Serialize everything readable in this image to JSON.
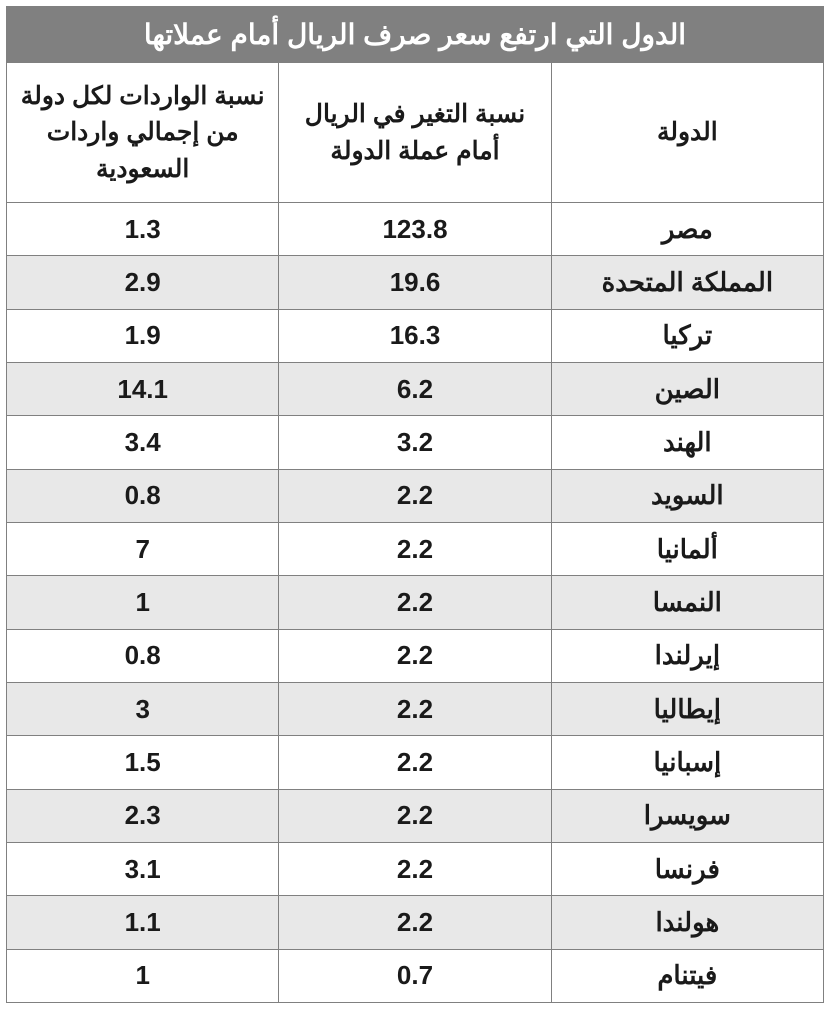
{
  "table": {
    "type": "table",
    "title": "الدول التي ارتفع  سعر صرف الريال أمام عملاتها",
    "title_bg_color": "#808080",
    "title_text_color": "#ffffff",
    "title_fontsize": 28,
    "border_color": "#808080",
    "row_even_bg": "#ffffff",
    "row_odd_bg": "#e8e8e8",
    "text_color": "#1a1a1a",
    "header_fontsize": 25,
    "data_fontsize": 26,
    "columns": [
      {
        "key": "country",
        "label": "الدولة",
        "width_pct": 33.3
      },
      {
        "key": "change_pct",
        "label": "نسبة التغير في الريال أمام عملة الدولة",
        "width_pct": 33.3
      },
      {
        "key": "import_share_pct",
        "label": "نسبة الواردات لكل دولة من إجمالي واردات السعودية",
        "width_pct": 33.3
      }
    ],
    "rows": [
      {
        "country": "مصر",
        "change_pct": "123.8",
        "import_share_pct": "1.3"
      },
      {
        "country": "المملكة المتحدة",
        "change_pct": "19.6",
        "import_share_pct": "2.9"
      },
      {
        "country": "تركيا",
        "change_pct": "16.3",
        "import_share_pct": "1.9"
      },
      {
        "country": "الصين",
        "change_pct": "6.2",
        "import_share_pct": "14.1"
      },
      {
        "country": "الهند",
        "change_pct": "3.2",
        "import_share_pct": "3.4"
      },
      {
        "country": "السويد",
        "change_pct": "2.2",
        "import_share_pct": "0.8"
      },
      {
        "country": "ألمانيا",
        "change_pct": "2.2",
        "import_share_pct": "7"
      },
      {
        "country": "النمسا",
        "change_pct": "2.2",
        "import_share_pct": "1"
      },
      {
        "country": "إيرلندا",
        "change_pct": "2.2",
        "import_share_pct": "0.8"
      },
      {
        "country": "إيطاليا",
        "change_pct": "2.2",
        "import_share_pct": "3"
      },
      {
        "country": "إسبانيا",
        "change_pct": "2.2",
        "import_share_pct": "1.5"
      },
      {
        "country": "سويسرا",
        "change_pct": "2.2",
        "import_share_pct": "2.3"
      },
      {
        "country": "فرنسا",
        "change_pct": "2.2",
        "import_share_pct": "3.1"
      },
      {
        "country": "هولندا",
        "change_pct": "2.2",
        "import_share_pct": "1.1"
      },
      {
        "country": "فيتنام",
        "change_pct": "0.7",
        "import_share_pct": "1"
      }
    ]
  }
}
